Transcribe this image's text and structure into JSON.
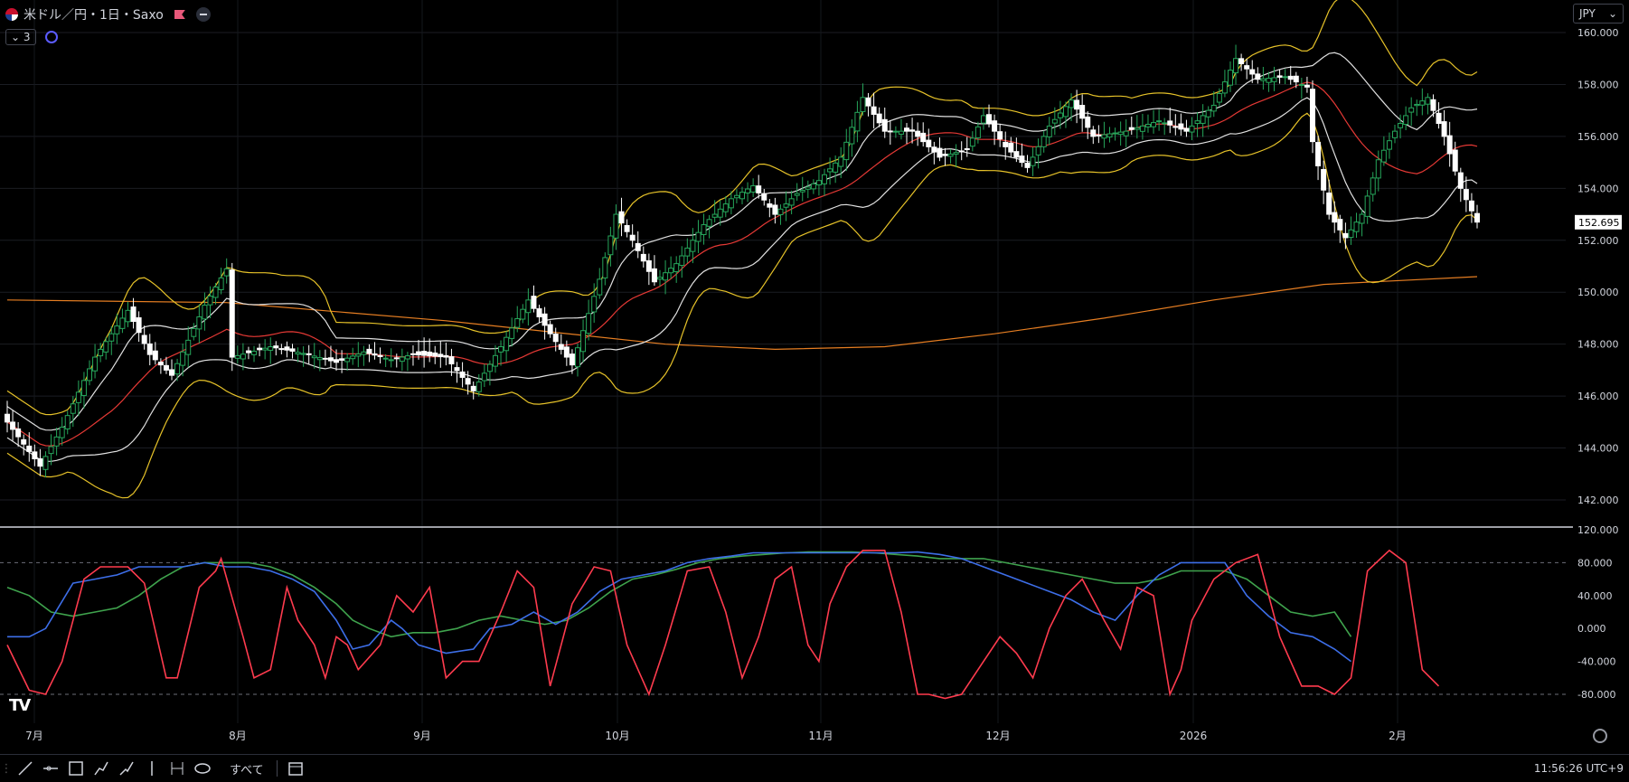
{
  "header": {
    "symbol_title": "米ドル／円・1日・Saxo",
    "indicator_count": "3",
    "currency": "JPY"
  },
  "colors": {
    "up_candle": "#26a65b",
    "down_candle": "#ffffff",
    "bb_outer": "#e6c229",
    "bb_inner": "#e0e0e0",
    "bb_mid": "#e53935",
    "sma200": "#e67e22",
    "stoch_fast": "#ff3b4e",
    "stoch_k": "#3d6ee8",
    "stoch_d": "#3fa34d",
    "price_label_bg": "#ffffff"
  },
  "chart_data": {
    "type": "candlestick",
    "price_axis": {
      "ylim": [
        141,
        161
      ],
      "ticks": [
        "160.000",
        "158.000",
        "156.000",
        "154.000",
        "152.000",
        "150.000",
        "148.000",
        "146.000",
        "144.000",
        "142.000"
      ]
    },
    "current_price": "152.695",
    "x_labels": [
      "7月",
      "8月",
      "9月",
      "10月",
      "11月",
      "12月",
      "2026",
      "2月"
    ],
    "oscillator_axis": {
      "ylim": [
        -112,
        120
      ],
      "ticks": [
        "120.000",
        "80.000",
        "40.000",
        "0.000",
        "-40.000",
        "-80.000"
      ]
    },
    "anchors": [
      [
        0,
        145.0
      ],
      [
        6,
        143.3
      ],
      [
        10,
        144.8
      ],
      [
        16,
        147.5
      ],
      [
        22,
        149.3
      ],
      [
        26,
        147.6
      ],
      [
        30,
        146.8
      ],
      [
        36,
        149.5
      ],
      [
        40,
        150.9
      ],
      [
        41,
        147.5
      ],
      [
        48,
        147.9
      ],
      [
        55,
        147.6
      ],
      [
        60,
        147.3
      ],
      [
        65,
        147.7
      ],
      [
        70,
        147.4
      ],
      [
        74,
        147.6
      ],
      [
        80,
        147.5
      ],
      [
        85,
        146.2
      ],
      [
        90,
        147.9
      ],
      [
        95,
        149.7
      ],
      [
        99,
        148.4
      ],
      [
        103,
        147.2
      ],
      [
        108,
        150.5
      ],
      [
        111,
        153.0
      ],
      [
        114,
        152.0
      ],
      [
        118,
        150.4
      ],
      [
        122,
        151.1
      ],
      [
        127,
        152.6
      ],
      [
        132,
        153.6
      ],
      [
        136,
        154.1
      ],
      [
        140,
        153.0
      ],
      [
        144,
        153.8
      ],
      [
        148,
        154.3
      ],
      [
        152,
        155.2
      ],
      [
        156,
        157.5
      ],
      [
        160,
        156.2
      ],
      [
        165,
        156.2
      ],
      [
        170,
        155.2
      ],
      [
        175,
        155.5
      ],
      [
        178,
        156.8
      ],
      [
        182,
        155.6
      ],
      [
        186,
        154.8
      ],
      [
        190,
        156.4
      ],
      [
        194,
        157.4
      ],
      [
        198,
        156.0
      ],
      [
        204,
        156.2
      ],
      [
        210,
        156.6
      ],
      [
        215,
        156.2
      ],
      [
        220,
        157.2
      ],
      [
        224,
        159.0
      ],
      [
        228,
        158.2
      ],
      [
        233,
        158.3
      ],
      [
        237,
        157.9
      ],
      [
        238,
        155.8
      ],
      [
        241,
        153.0
      ],
      [
        244,
        152.1
      ],
      [
        247,
        153.0
      ],
      [
        250,
        155.1
      ],
      [
        253,
        156.2
      ],
      [
        256,
        157.1
      ],
      [
        259,
        157.5
      ],
      [
        262,
        156.0
      ],
      [
        265,
        154.0
      ],
      [
        268,
        152.7
      ]
    ],
    "anchor_key": [
      "bar_index",
      "close"
    ],
    "sma200": [
      [
        0,
        149.7
      ],
      [
        40,
        149.6
      ],
      [
        80,
        148.9
      ],
      [
        120,
        148.0
      ],
      [
        140,
        147.8
      ],
      [
        160,
        147.9
      ],
      [
        180,
        148.4
      ],
      [
        200,
        149.0
      ],
      [
        220,
        149.7
      ],
      [
        240,
        150.3
      ],
      [
        268,
        150.6
      ]
    ],
    "stoch_fast": [
      [
        0,
        -20
      ],
      [
        4,
        -75
      ],
      [
        7,
        -80
      ],
      [
        10,
        -40
      ],
      [
        14,
        60
      ],
      [
        17,
        75
      ],
      [
        22,
        75
      ],
      [
        25,
        55
      ],
      [
        29,
        -60
      ],
      [
        31,
        -60
      ],
      [
        35,
        50
      ],
      [
        38,
        70
      ],
      [
        39,
        85
      ],
      [
        43,
        -10
      ],
      [
        45,
        -60
      ],
      [
        48,
        -50
      ],
      [
        51,
        50
      ],
      [
        53,
        10
      ],
      [
        56,
        -20
      ],
      [
        58,
        -60
      ],
      [
        60,
        -10
      ],
      [
        62,
        -20
      ],
      [
        64,
        -50
      ],
      [
        68,
        -20
      ],
      [
        71,
        40
      ],
      [
        74,
        20
      ],
      [
        77,
        50
      ],
      [
        80,
        -60
      ],
      [
        83,
        -40
      ],
      [
        86,
        -40
      ],
      [
        90,
        20
      ],
      [
        93,
        70
      ],
      [
        96,
        50
      ],
      [
        99,
        -70
      ],
      [
        103,
        30
      ],
      [
        107,
        75
      ],
      [
        110,
        70
      ],
      [
        113,
        -20
      ],
      [
        117,
        -80
      ],
      [
        120,
        -20
      ],
      [
        124,
        70
      ],
      [
        128,
        75
      ],
      [
        131,
        20
      ],
      [
        134,
        -60
      ],
      [
        137,
        -10
      ],
      [
        140,
        60
      ],
      [
        143,
        75
      ],
      [
        146,
        -20
      ],
      [
        148,
        -40
      ],
      [
        150,
        30
      ],
      [
        153,
        75
      ],
      [
        156,
        95
      ],
      [
        160,
        95
      ],
      [
        163,
        20
      ],
      [
        166,
        -80
      ],
      [
        168,
        -80
      ],
      [
        171,
        -85
      ],
      [
        174,
        -80
      ],
      [
        177,
        -50
      ],
      [
        181,
        -10
      ],
      [
        184,
        -30
      ],
      [
        187,
        -60
      ],
      [
        190,
        0
      ],
      [
        193,
        40
      ],
      [
        196,
        60
      ],
      [
        200,
        10
      ],
      [
        203,
        -25
      ],
      [
        206,
        50
      ],
      [
        209,
        40
      ],
      [
        212,
        -80
      ],
      [
        214,
        -50
      ],
      [
        216,
        10
      ],
      [
        220,
        60
      ],
      [
        224,
        80
      ],
      [
        228,
        90
      ],
      [
        232,
        -10
      ],
      [
        236,
        -70
      ],
      [
        239,
        -70
      ],
      [
        242,
        -80
      ],
      [
        245,
        -60
      ],
      [
        248,
        70
      ],
      [
        252,
        95
      ],
      [
        255,
        80
      ],
      [
        258,
        -50
      ],
      [
        261,
        -70
      ]
    ],
    "stoch_k": [
      [
        0,
        -10
      ],
      [
        4,
        -10
      ],
      [
        7,
        0
      ],
      [
        12,
        55
      ],
      [
        16,
        60
      ],
      [
        20,
        65
      ],
      [
        24,
        75
      ],
      [
        28,
        75
      ],
      [
        32,
        75
      ],
      [
        36,
        80
      ],
      [
        40,
        75
      ],
      [
        44,
        75
      ],
      [
        48,
        70
      ],
      [
        52,
        60
      ],
      [
        56,
        45
      ],
      [
        60,
        10
      ],
      [
        63,
        -25
      ],
      [
        66,
        -20
      ],
      [
        70,
        10
      ],
      [
        72,
        0
      ],
      [
        75,
        -20
      ],
      [
        80,
        -30
      ],
      [
        85,
        -25
      ],
      [
        88,
        0
      ],
      [
        92,
        5
      ],
      [
        96,
        20
      ],
      [
        100,
        5
      ],
      [
        104,
        20
      ],
      [
        108,
        45
      ],
      [
        112,
        60
      ],
      [
        116,
        65
      ],
      [
        120,
        70
      ],
      [
        124,
        80
      ],
      [
        128,
        85
      ],
      [
        132,
        88
      ],
      [
        136,
        92
      ],
      [
        140,
        92
      ],
      [
        146,
        92
      ],
      [
        150,
        92
      ],
      [
        154,
        92
      ],
      [
        158,
        92
      ],
      [
        162,
        92
      ],
      [
        166,
        93
      ],
      [
        170,
        90
      ],
      [
        174,
        85
      ],
      [
        178,
        75
      ],
      [
        182,
        65
      ],
      [
        186,
        55
      ],
      [
        190,
        45
      ],
      [
        194,
        35
      ],
      [
        198,
        20
      ],
      [
        202,
        10
      ],
      [
        206,
        40
      ],
      [
        210,
        65
      ],
      [
        214,
        80
      ],
      [
        218,
        80
      ],
      [
        222,
        80
      ],
      [
        226,
        40
      ],
      [
        230,
        15
      ],
      [
        234,
        -5
      ],
      [
        238,
        -10
      ],
      [
        242,
        -25
      ],
      [
        245,
        -40
      ]
    ],
    "stoch_d": [
      [
        0,
        50
      ],
      [
        4,
        40
      ],
      [
        8,
        20
      ],
      [
        12,
        15
      ],
      [
        16,
        20
      ],
      [
        20,
        25
      ],
      [
        24,
        40
      ],
      [
        28,
        60
      ],
      [
        32,
        75
      ],
      [
        36,
        80
      ],
      [
        40,
        80
      ],
      [
        44,
        80
      ],
      [
        48,
        75
      ],
      [
        52,
        65
      ],
      [
        56,
        50
      ],
      [
        60,
        30
      ],
      [
        63,
        10
      ],
      [
        66,
        0
      ],
      [
        70,
        -10
      ],
      [
        74,
        -5
      ],
      [
        78,
        -5
      ],
      [
        82,
        0
      ],
      [
        86,
        10
      ],
      [
        90,
        15
      ],
      [
        94,
        10
      ],
      [
        98,
        5
      ],
      [
        102,
        10
      ],
      [
        106,
        25
      ],
      [
        110,
        45
      ],
      [
        114,
        60
      ],
      [
        118,
        65
      ],
      [
        122,
        72
      ],
      [
        126,
        80
      ],
      [
        130,
        85
      ],
      [
        134,
        88
      ],
      [
        138,
        90
      ],
      [
        142,
        92
      ],
      [
        146,
        93
      ],
      [
        150,
        93
      ],
      [
        154,
        93
      ],
      [
        158,
        92
      ],
      [
        162,
        90
      ],
      [
        166,
        88
      ],
      [
        170,
        85
      ],
      [
        174,
        85
      ],
      [
        178,
        85
      ],
      [
        182,
        80
      ],
      [
        186,
        75
      ],
      [
        190,
        70
      ],
      [
        194,
        65
      ],
      [
        198,
        60
      ],
      [
        202,
        55
      ],
      [
        206,
        55
      ],
      [
        210,
        60
      ],
      [
        214,
        70
      ],
      [
        218,
        70
      ],
      [
        222,
        70
      ],
      [
        226,
        60
      ],
      [
        230,
        40
      ],
      [
        234,
        20
      ],
      [
        238,
        15
      ],
      [
        242,
        20
      ],
      [
        245,
        -10
      ]
    ]
  },
  "toolbar": {
    "all_label": "すべて",
    "clock": "11:56:26 UTC+9"
  }
}
